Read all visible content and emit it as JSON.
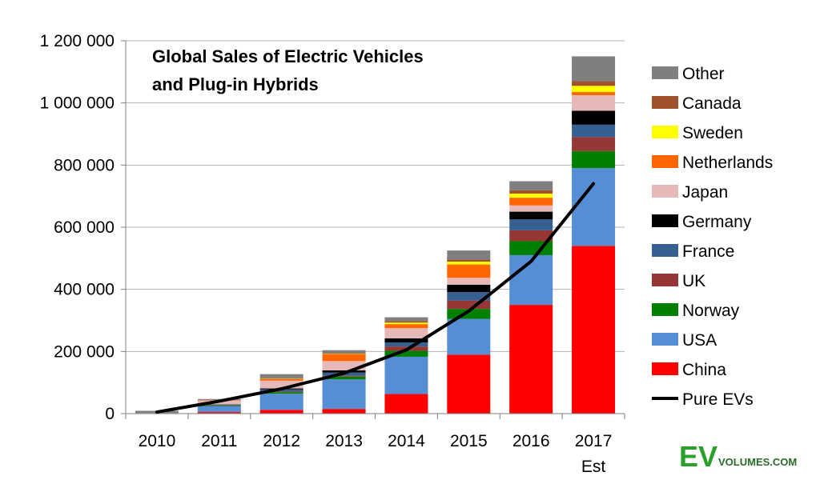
{
  "chart_data": {
    "type": "bar",
    "stacked": true,
    "title": "Global Sales of Electric Vehicles and Plug-in Hybrids",
    "title_lines": [
      "Global Sales of Electric Vehicles",
      "and Plug-in Hybrids"
    ],
    "categories": [
      "2010",
      "2011",
      "2012",
      "2013",
      "2014",
      "2015",
      "2016",
      "2017"
    ],
    "category_sublabels": [
      "",
      "",
      "",
      "",
      "",
      "",
      "",
      "Est"
    ],
    "ylim": [
      0,
      1200000
    ],
    "yticks": [
      0,
      200000,
      400000,
      600000,
      800000,
      1000000,
      1200000
    ],
    "ytick_labels": [
      "0",
      "200 000",
      "400 000",
      "600 000",
      "800 000",
      "1 000 000",
      "1 200 000"
    ],
    "xlabel": "",
    "ylabel": "",
    "grid": true,
    "legend_position": "right",
    "series": [
      {
        "name": "China",
        "color": "#ff0000",
        "values": [
          1000,
          5000,
          12000,
          15000,
          63000,
          190000,
          350000,
          540000
        ]
      },
      {
        "name": "USA",
        "color": "#558ed5",
        "values": [
          1000,
          18000,
          52000,
          95000,
          120000,
          115000,
          160000,
          250000
        ]
      },
      {
        "name": "Norway",
        "color": "#008000",
        "values": [
          0,
          2000,
          5000,
          9000,
          19000,
          32000,
          45000,
          55000
        ]
      },
      {
        "name": "UK",
        "color": "#953735",
        "values": [
          0,
          1000,
          2000,
          3000,
          14000,
          27000,
          35000,
          45000
        ]
      },
      {
        "name": "France",
        "color": "#366092",
        "values": [
          0,
          3000,
          7000,
          10000,
          13000,
          27000,
          35000,
          40000
        ]
      },
      {
        "name": "Germany",
        "color": "#000000",
        "values": [
          0,
          1000,
          3000,
          7000,
          13000,
          24000,
          25000,
          45000
        ]
      },
      {
        "name": "Japan",
        "color": "#e6b9b8",
        "values": [
          0,
          12000,
          25000,
          30000,
          33000,
          22000,
          20000,
          50000
        ]
      },
      {
        "name": "Netherlands",
        "color": "#ff6600",
        "values": [
          0,
          1000,
          5000,
          22000,
          13000,
          43000,
          25000,
          10000
        ]
      },
      {
        "name": "Sweden",
        "color": "#ffff00",
        "values": [
          0,
          0,
          1000,
          1000,
          5000,
          9000,
          13000,
          20000
        ]
      },
      {
        "name": "Canada",
        "color": "#a0522d",
        "values": [
          0,
          1000,
          2000,
          3000,
          5000,
          7000,
          11000,
          15000
        ]
      },
      {
        "name": "Other",
        "color": "#7f7f7f",
        "values": [
          7000,
          3000,
          13000,
          9000,
          12000,
          29000,
          29000,
          80000
        ]
      }
    ],
    "line_series": {
      "name": "Pure EVs",
      "color": "#000000",
      "values": [
        5000,
        40000,
        80000,
        130000,
        205000,
        330000,
        490000,
        740000
      ]
    },
    "legend_order": [
      "Other",
      "Canada",
      "Sweden",
      "Netherlands",
      "Japan",
      "Germany",
      "France",
      "UK",
      "Norway",
      "USA",
      "China",
      "Pure EVs"
    ]
  },
  "branding": {
    "logo_main": "EV",
    "logo_sub": "VOLUMES.COM"
  }
}
